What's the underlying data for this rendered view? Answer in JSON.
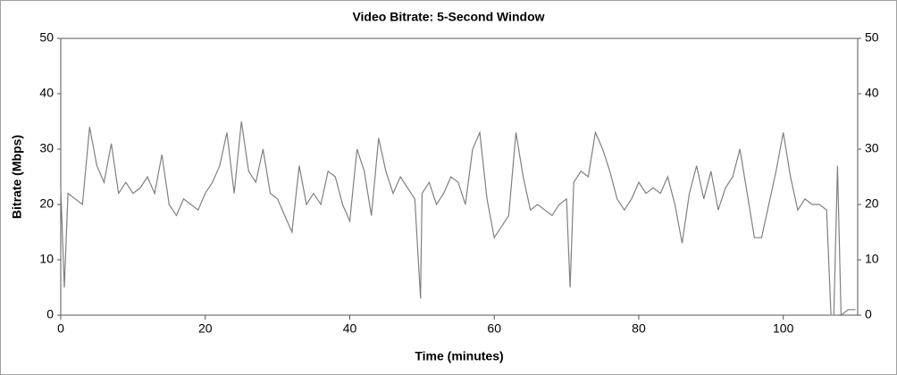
{
  "chart_data": {
    "type": "line",
    "title": "Video Bitrate: 5-Second Window",
    "x_label": "Time (minutes)",
    "y_label": "Bitrate (Mbps)",
    "x": [
      0,
      0.5,
      1,
      2,
      3,
      4,
      5,
      6,
      7,
      8,
      9,
      10,
      11,
      12,
      13,
      14,
      15,
      16,
      17,
      18,
      19,
      20,
      21,
      22,
      23,
      24,
      25,
      26,
      27,
      28,
      29,
      30,
      31,
      32,
      33,
      34,
      35,
      36,
      37,
      38,
      39,
      40,
      41,
      42,
      43,
      44,
      45,
      46,
      47,
      48,
      49,
      49.8,
      50,
      51,
      52,
      53,
      54,
      55,
      56,
      57,
      58,
      59,
      60,
      61,
      62,
      63,
      64,
      65,
      66,
      67,
      68,
      69,
      70,
      70.5,
      71,
      72,
      73,
      74,
      75,
      76,
      77,
      78,
      79,
      80,
      81,
      82,
      83,
      84,
      85,
      86,
      87,
      88,
      89,
      90,
      91,
      92,
      93,
      94,
      95,
      96,
      97,
      98,
      99,
      100,
      101,
      102,
      103,
      104,
      105,
      106,
      106.6,
      107,
      107.5,
      108,
      109,
      110
    ],
    "values": [
      23,
      5,
      22,
      21,
      20,
      34,
      27,
      24,
      31,
      22,
      24,
      22,
      23,
      25,
      22,
      29,
      20,
      18,
      21,
      20,
      19,
      22,
      24,
      27,
      33,
      22,
      35,
      26,
      24,
      30,
      22,
      21,
      18,
      15,
      27,
      20,
      22,
      20,
      26,
      25,
      20,
      17,
      30,
      26,
      18,
      32,
      26,
      22,
      25,
      23,
      21,
      3,
      22,
      24,
      20,
      22,
      25,
      24,
      20,
      30,
      33,
      21,
      14,
      16,
      18,
      33,
      25,
      19,
      20,
      19,
      18,
      20,
      21,
      5,
      24,
      26,
      25,
      33,
      30,
      26,
      21,
      19,
      21,
      24,
      22,
      23,
      22,
      25,
      20,
      13,
      22,
      27,
      21,
      26,
      19,
      23,
      25,
      30,
      22,
      14,
      14,
      20,
      26,
      33,
      25,
      19,
      21,
      20,
      20,
      19,
      0,
      0,
      27,
      0,
      1,
      1
    ],
    "color": "#808080",
    "xlim": [
      0,
      110.3
    ],
    "ylim": [
      0,
      50
    ],
    "xticks": [
      0,
      20,
      40,
      60,
      80,
      100
    ],
    "yticks": [
      0,
      10,
      20,
      30,
      40,
      50
    ]
  }
}
